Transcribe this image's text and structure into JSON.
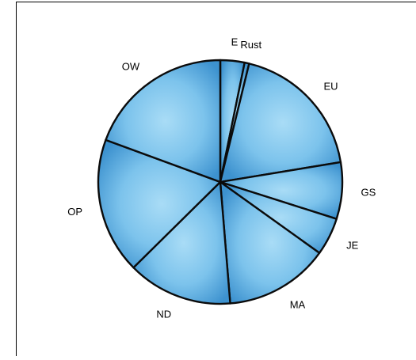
{
  "chart_data": {
    "type": "pie",
    "title": "",
    "categories": [
      "E",
      "Rust",
      "EU",
      "GS",
      "JE",
      "MA",
      "ND",
      "OP",
      "OW"
    ],
    "values": [
      3.2,
      0.6,
      18.6,
      7.5,
      5.0,
      13.8,
      13.9,
      18.0,
      19.4
    ],
    "start_angle_deg": 0,
    "direction": "clockwise",
    "legend": "none",
    "fill_color": "#4aa3dc",
    "fill_highlight": "#a9dcf6",
    "edge_color": "#0b0b0b"
  }
}
